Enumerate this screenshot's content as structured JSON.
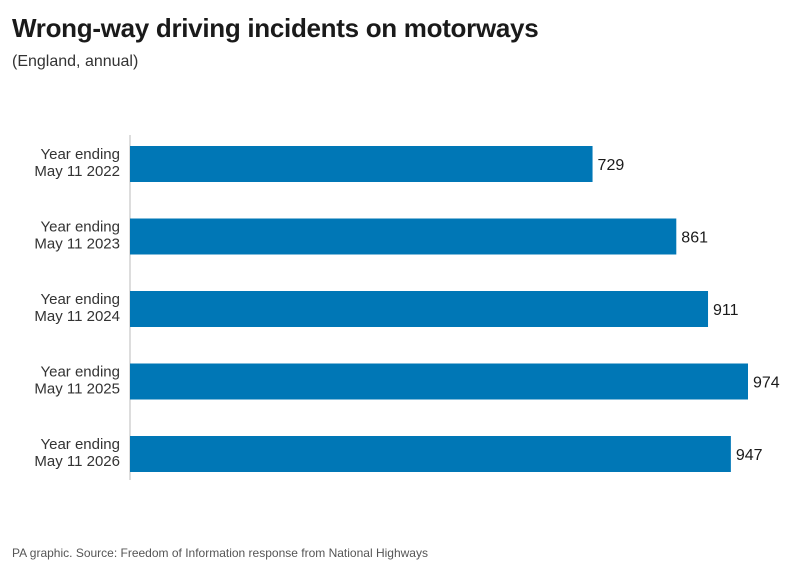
{
  "chart_data": {
    "type": "bar",
    "orientation": "horizontal",
    "title": "Wrong-way driving incidents on motorways",
    "subtitle": "(England, annual)",
    "categories": [
      [
        "Year ending",
        "May 11 2022"
      ],
      [
        "Year ending",
        "May 11 2023"
      ],
      [
        "Year ending",
        "May 11 2024"
      ],
      [
        "Year ending",
        "May 11 2025"
      ],
      [
        "Year ending",
        "May 11 2026"
      ]
    ],
    "values": [
      729,
      861,
      911,
      974,
      947
    ],
    "xlim": [
      0,
      974
    ],
    "grid": false,
    "bar_color": "#0077b6",
    "source": "PA graphic. Source: Freedom of Information response from National Highways"
  }
}
